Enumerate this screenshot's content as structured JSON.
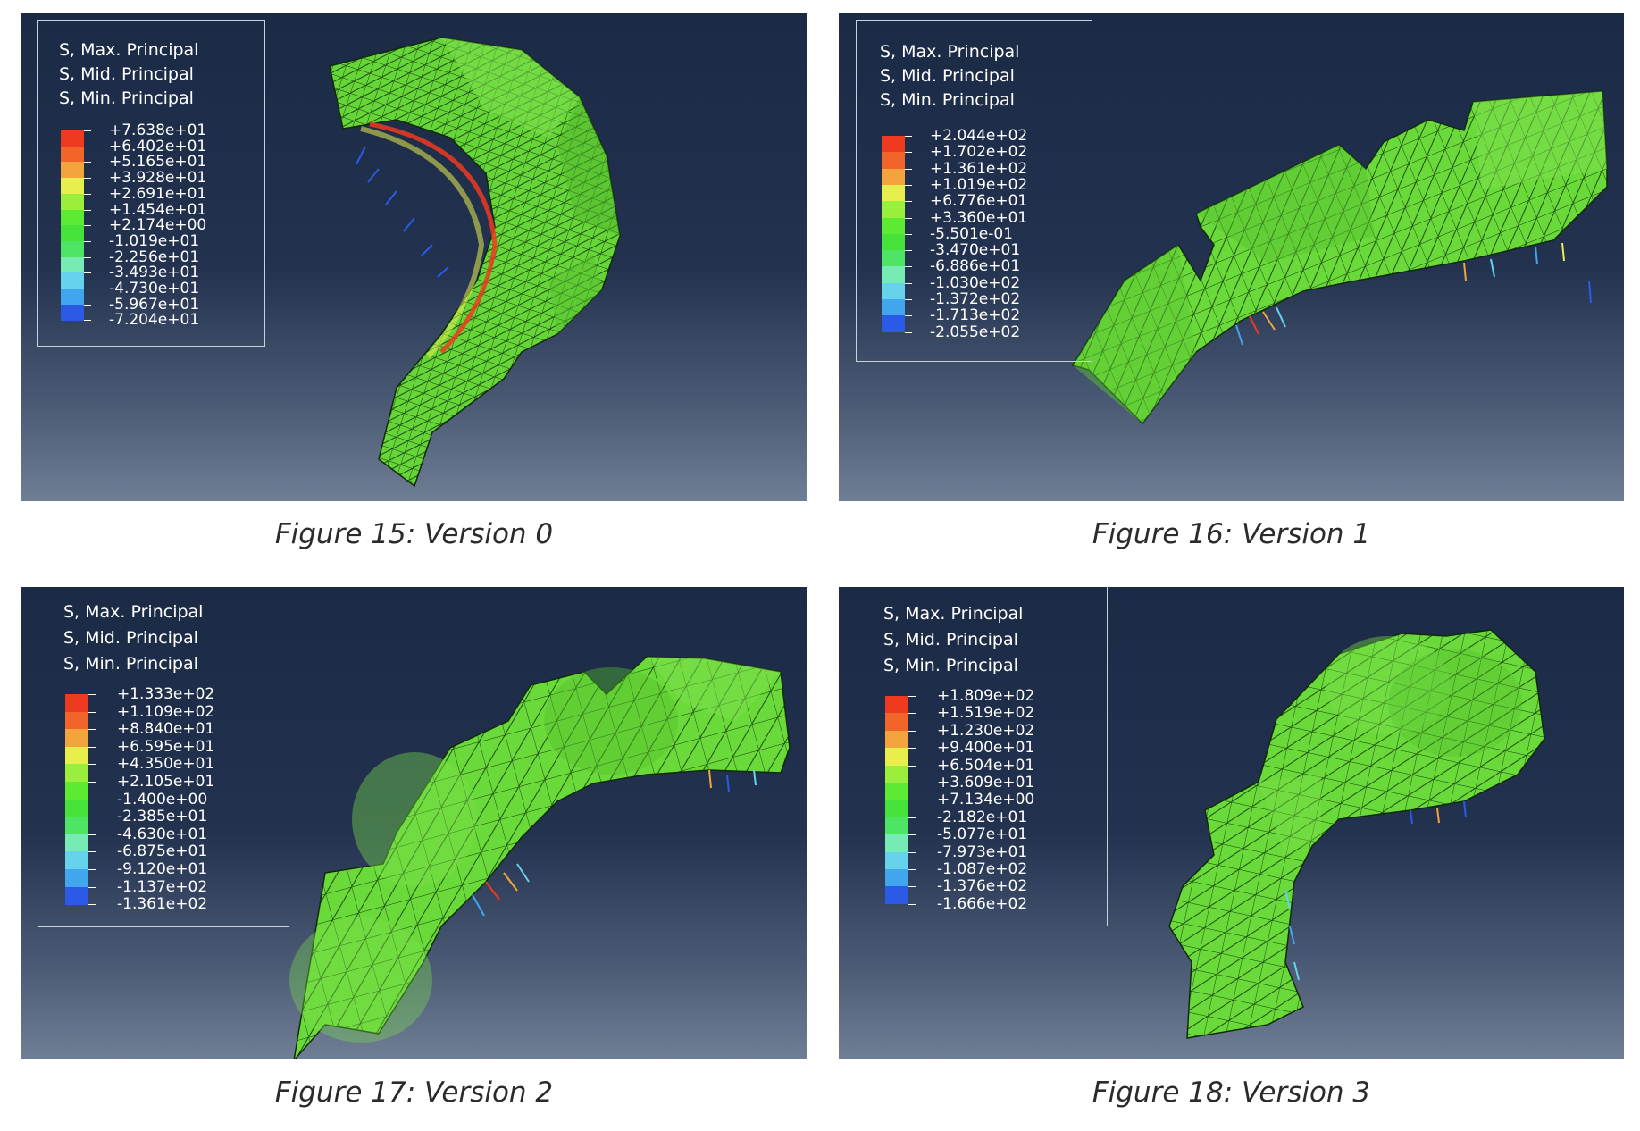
{
  "figures": [
    {
      "caption": "Figure 15: Version 0",
      "legend_titles": [
        "S, Max. Principal",
        "S, Mid. Principal",
        "S, Min. Principal"
      ],
      "legend_values": [
        "+7.638e+01",
        "+6.402e+01",
        "+5.165e+01",
        "+3.928e+01",
        "+2.691e+01",
        "+1.454e+01",
        "+2.174e+00",
        "-1.019e+01",
        "-2.256e+01",
        "-3.493e+01",
        "-4.730e+01",
        "-5.967e+01",
        "-7.204e+01"
      ]
    },
    {
      "caption": "Figure 16: Version 1",
      "legend_titles": [
        "S, Max. Principal",
        "S, Mid. Principal",
        "S, Min. Principal"
      ],
      "legend_values": [
        "+2.044e+02",
        "+1.702e+02",
        "+1.361e+02",
        "+1.019e+02",
        "+6.776e+01",
        "+3.360e+01",
        "-5.501e-01",
        "-3.470e+01",
        "-6.886e+01",
        "-1.030e+02",
        "-1.372e+02",
        "-1.713e+02",
        "-2.055e+02"
      ]
    },
    {
      "caption": "Figure 17: Version 2",
      "legend_titles": [
        "S, Max. Principal",
        "S, Mid. Principal",
        "S, Min. Principal"
      ],
      "legend_values": [
        "+1.333e+02",
        "+1.109e+02",
        "+8.840e+01",
        "+6.595e+01",
        "+4.350e+01",
        "+2.105e+01",
        "-1.400e+00",
        "-2.385e+01",
        "-4.630e+01",
        "-6.875e+01",
        "-9.120e+01",
        "-1.137e+02",
        "-1.361e+02"
      ]
    },
    {
      "caption": "Figure 18: Version 3",
      "legend_titles": [
        "S, Max. Principal",
        "S, Mid. Principal",
        "S, Min. Principal"
      ],
      "legend_values": [
        "+1.809e+02",
        "+1.519e+02",
        "+1.230e+02",
        "+9.400e+01",
        "+6.504e+01",
        "+3.609e+01",
        "+7.134e+00",
        "-2.182e+01",
        "-5.077e+01",
        "-7.973e+01",
        "-1.087e+02",
        "-1.376e+02",
        "-1.666e+02"
      ]
    }
  ],
  "colors": {
    "contour_bands": [
      "#ee3a1e",
      "#f2652a",
      "#f4a43c",
      "#e8ee4c",
      "#9aee3c",
      "#5cea32",
      "#46e23a",
      "#4ee464",
      "#76ecb4",
      "#66d2ec",
      "#42a6ee",
      "#2a5ae6",
      "#0a12e6"
    ],
    "mesh_fill": "#6ad93a",
    "mesh_edge": "#0f2a0a",
    "legend_text": "#ffffff",
    "background_top": "#1b2a45",
    "background_bottom": "#6f7e95"
  }
}
